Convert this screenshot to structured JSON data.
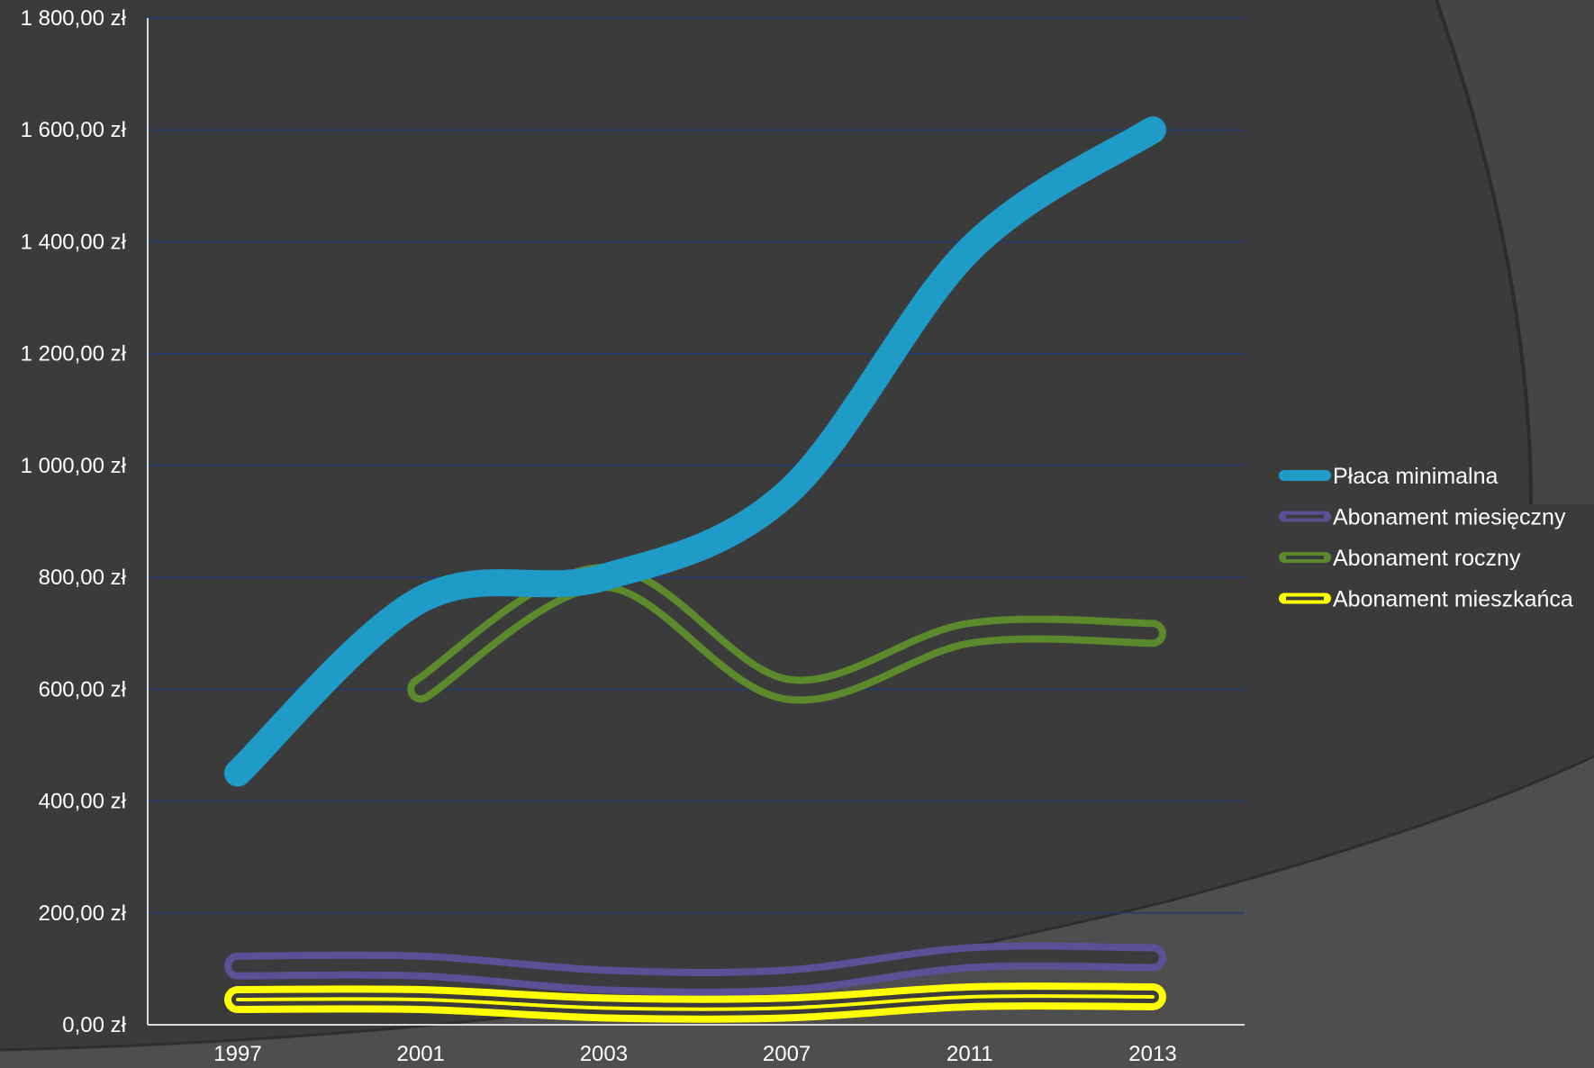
{
  "chart_data": {
    "type": "line",
    "title": "",
    "xlabel": "",
    "ylabel": "",
    "categories": [
      "1997",
      "2001",
      "2003",
      "2007",
      "2011",
      "2013"
    ],
    "ylim": [
      0,
      1800
    ],
    "y_ticks": [
      "0,00 zł",
      "200,00 zł",
      "400,00 zł",
      "600,00 zł",
      "800,00 zł",
      "1 000,00 zł",
      "1 200,00 zł",
      "1 400,00 zł",
      "1 600,00 zł",
      "1 800,00 zł"
    ],
    "grid": true,
    "smooth": true,
    "legend_position": "right",
    "series": [
      {
        "name": "Płaca minimalna",
        "color": "#1f9bc8",
        "style": "solid",
        "values": [
          450,
          760,
          800,
          950,
          1386,
          1600
        ]
      },
      {
        "name": "Abonament miesięczny",
        "color": "#5c4f96",
        "style": "outline",
        "values": [
          105,
          105,
          80,
          80,
          120,
          120
        ]
      },
      {
        "name": "Abonament roczny",
        "color": "#5b8a2c",
        "style": "outline",
        "values": [
          null,
          600,
          800,
          600,
          700,
          700
        ]
      },
      {
        "name": "Abonament mieszkańca",
        "color": "#ffff00",
        "style": "outline",
        "values": [
          45,
          45,
          30,
          30,
          50,
          50
        ]
      }
    ]
  },
  "colors": {
    "background": "#3b3b3b",
    "decor": "#4e4e4e",
    "gridline": "#1f3b73",
    "axis": "#d9d9d9",
    "text": "#ffffff"
  }
}
